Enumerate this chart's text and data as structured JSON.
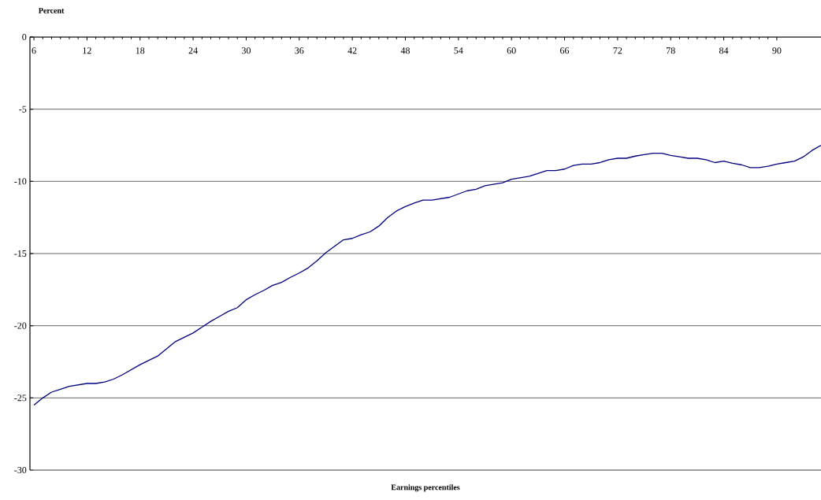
{
  "chart_data": {
    "type": "line",
    "title": "Percent",
    "xlabel": "Earnings percentiles",
    "color": "#000080",
    "x": [
      6,
      7,
      8,
      9,
      10,
      12,
      13,
      14,
      15,
      16,
      18,
      19,
      20,
      22,
      24,
      25,
      26,
      27,
      28,
      29,
      30,
      31,
      32,
      33,
      34,
      35,
      36,
      37,
      38,
      39,
      40,
      41,
      42,
      43,
      44,
      45,
      46,
      47,
      48,
      49,
      50,
      51,
      53,
      55,
      56,
      57,
      59,
      60,
      62,
      64,
      65,
      66,
      67,
      68,
      69,
      70,
      71,
      72,
      73,
      74,
      75,
      76,
      77,
      78,
      79,
      80,
      81,
      82,
      83,
      84,
      85,
      86,
      87,
      88,
      89,
      90,
      91,
      92,
      93,
      94,
      95
    ],
    "values": [
      -25.5,
      -25.0,
      -24.6,
      -24.4,
      -24.2,
      -24.0,
      -24.0,
      -23.9,
      -23.7,
      -23.4,
      -22.7,
      -22.4,
      -22.1,
      -21.1,
      -20.5,
      -20.1,
      -19.7,
      -19.35,
      -19.0,
      -18.75,
      -18.2,
      -17.85,
      -17.55,
      -17.2,
      -17.0,
      -16.65,
      -16.35,
      -16.0,
      -15.5,
      -14.95,
      -14.5,
      -14.05,
      -13.95,
      -13.7,
      -13.5,
      -13.1,
      -12.5,
      -12.05,
      -11.75,
      -11.5,
      -11.3,
      -11.3,
      -11.1,
      -10.65,
      -10.55,
      -10.3,
      -10.1,
      -9.85,
      -9.65,
      -9.25,
      -9.25,
      -9.15,
      -8.9,
      -8.8,
      -8.8,
      -8.7,
      -8.5,
      -8.4,
      -8.4,
      -8.25,
      -8.15,
      -8.05,
      -8.05,
      -8.2,
      -8.3,
      -8.4,
      -8.4,
      -8.5,
      -8.7,
      -8.6,
      -8.75,
      -8.85,
      -9.05,
      -9.05,
      -8.95,
      -8.8,
      -8.7,
      -8.6,
      -8.3,
      -7.85,
      -7.5
    ],
    "xlim": [
      5.55,
      95
    ],
    "ylim": [
      -30,
      0
    ],
    "xticks": [
      6,
      12,
      18,
      24,
      30,
      36,
      42,
      48,
      54,
      60,
      66,
      72,
      78,
      84,
      90
    ],
    "yticks": [
      -30,
      -25,
      -20,
      -15,
      -10,
      -5,
      0
    ],
    "grid": "y"
  }
}
